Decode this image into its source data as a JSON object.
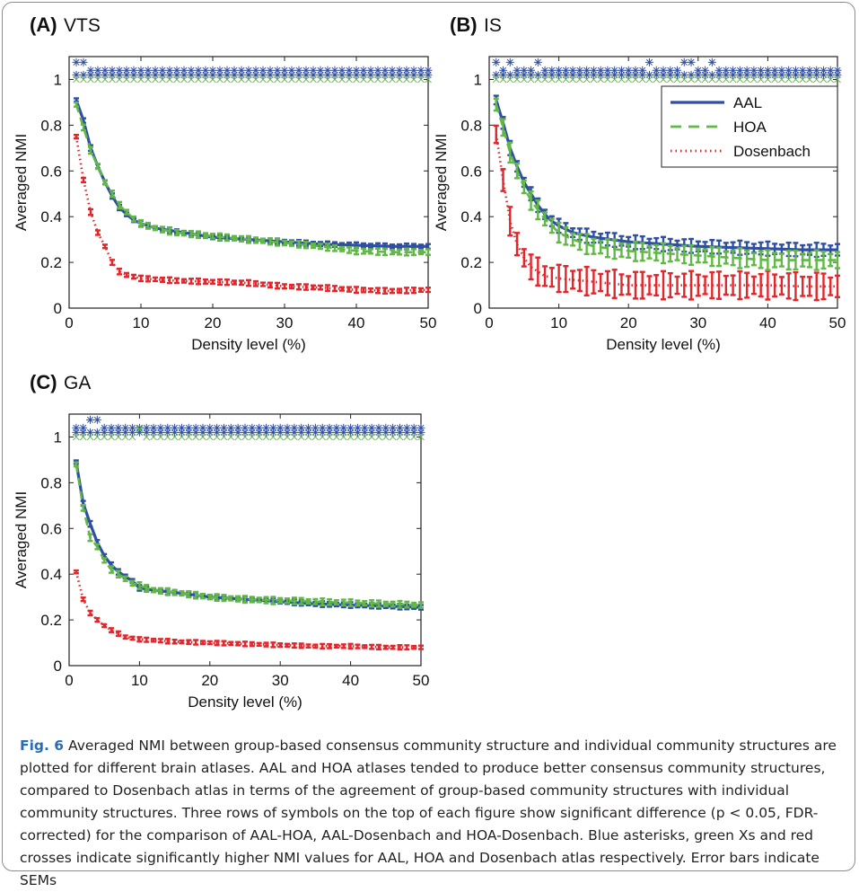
{
  "figure": {
    "caption_label": "Fig. 6",
    "caption_text": " Averaged NMI between group-based consensus community structure and individual community structures are plotted for different brain atlases. AAL and HOA atlases tended to produce better consensus community structures, compared to Dosenbach atlas in terms of the agreement of group-based community structures with individual community structures. Three rows of symbols on the top of each figure show significant difference (p < 0.05, FDR-corrected) for the comparison of AAL-HOA, AAL-Dosenbach and HOA-Dosenbach. Blue asterisks, green Xs and red crosses indicate significantly higher NMI values for AAL, HOA and Dosenbach atlas respectively. Error bars indicate SEMs"
  },
  "colors": {
    "AAL": "#2e4fa3",
    "HOA": "#62b846",
    "Dosenbach": "#e2262b"
  },
  "chart_data": [
    {
      "type": "line",
      "panel_label": "(A)",
      "title": "VTS",
      "xlabel": "Density level (%)",
      "ylabel": "Averaged NMI",
      "xlim": [
        0,
        50
      ],
      "ylim": [
        0,
        1.1
      ],
      "xticks": [
        "0",
        "10",
        "20",
        "30",
        "40",
        "50"
      ],
      "yticks": [
        "0",
        "0.2",
        "0.4",
        "0.6",
        "0.8",
        "1"
      ],
      "legend": null,
      "series": [
        {
          "name": "AAL",
          "style": "solid",
          "anchors": [
            [
              1,
              0.91
            ],
            [
              2,
              0.82
            ],
            [
              3,
              0.7
            ],
            [
              4,
              0.62
            ],
            [
              5,
              0.55
            ],
            [
              6,
              0.49
            ],
            [
              7,
              0.44
            ],
            [
              8,
              0.41
            ],
            [
              9,
              0.385
            ],
            [
              10,
              0.37
            ],
            [
              12,
              0.35
            ],
            [
              15,
              0.335
            ],
            [
              20,
              0.31
            ],
            [
              25,
              0.3
            ],
            [
              30,
              0.29
            ],
            [
              35,
              0.28
            ],
            [
              40,
              0.275
            ],
            [
              45,
              0.27
            ],
            [
              50,
              0.27
            ]
          ],
          "sem": 0.01
        },
        {
          "name": "HOA",
          "style": "dashed",
          "anchors": [
            [
              1,
              0.89
            ],
            [
              2,
              0.79
            ],
            [
              3,
              0.69
            ],
            [
              4,
              0.62
            ],
            [
              5,
              0.55
            ],
            [
              6,
              0.5
            ],
            [
              7,
              0.45
            ],
            [
              8,
              0.42
            ],
            [
              9,
              0.39
            ],
            [
              10,
              0.37
            ],
            [
              12,
              0.35
            ],
            [
              15,
              0.33
            ],
            [
              20,
              0.315
            ],
            [
              25,
              0.3
            ],
            [
              30,
              0.285
            ],
            [
              35,
              0.27
            ],
            [
              40,
              0.25
            ],
            [
              45,
              0.245
            ],
            [
              50,
              0.245
            ]
          ],
          "sem": 0.012
        },
        {
          "name": "Dosenbach",
          "style": "dotted",
          "anchors": [
            [
              1,
              0.75
            ],
            [
              2,
              0.56
            ],
            [
              3,
              0.42
            ],
            [
              4,
              0.33
            ],
            [
              5,
              0.27
            ],
            [
              6,
              0.2
            ],
            [
              7,
              0.16
            ],
            [
              8,
              0.145
            ],
            [
              10,
              0.13
            ],
            [
              15,
              0.12
            ],
            [
              20,
              0.115
            ],
            [
              25,
              0.11
            ],
            [
              30,
              0.095
            ],
            [
              35,
              0.09
            ],
            [
              40,
              0.08
            ],
            [
              45,
              0.075
            ],
            [
              50,
              0.08
            ]
          ],
          "sem": 0.01
        }
      ],
      "significance_rows": [
        {
          "name": "AAL-HOA",
          "symbol": "*",
          "color": "#2e4fa3",
          "raised_at": [
            1,
            2
          ]
        },
        {
          "name": "AAL-Dosenbach",
          "symbol": "*",
          "color": "#2e4fa3",
          "raised_at": []
        },
        {
          "name": "HOA-Dosenbach",
          "symbol": "x",
          "color": "#62b846",
          "raised_at": []
        }
      ]
    },
    {
      "type": "line",
      "panel_label": "(B)",
      "title": "IS",
      "xlabel": "Density level (%)",
      "ylabel": "Averaged NMI",
      "xlim": [
        0,
        50
      ],
      "ylim": [
        0,
        1.1
      ],
      "xticks": [
        "0",
        "10",
        "20",
        "30",
        "40",
        "50"
      ],
      "yticks": [
        "0",
        "0.2",
        "0.4",
        "0.6",
        "0.8",
        "1"
      ],
      "legend": "top-right",
      "series": [
        {
          "name": "AAL",
          "style": "solid",
          "anchors": [
            [
              1,
              0.91
            ],
            [
              2,
              0.81
            ],
            [
              3,
              0.7
            ],
            [
              4,
              0.62
            ],
            [
              5,
              0.55
            ],
            [
              6,
              0.5
            ],
            [
              7,
              0.45
            ],
            [
              8,
              0.41
            ],
            [
              9,
              0.38
            ],
            [
              10,
              0.36
            ],
            [
              12,
              0.33
            ],
            [
              15,
              0.31
            ],
            [
              20,
              0.29
            ],
            [
              25,
              0.28
            ],
            [
              30,
              0.27
            ],
            [
              35,
              0.265
            ],
            [
              40,
              0.26
            ],
            [
              45,
              0.255
            ],
            [
              50,
              0.255
            ]
          ],
          "sem": 0.025
        },
        {
          "name": "HOA",
          "style": "dashed",
          "anchors": [
            [
              1,
              0.89
            ],
            [
              2,
              0.79
            ],
            [
              3,
              0.68
            ],
            [
              4,
              0.6
            ],
            [
              5,
              0.53
            ],
            [
              6,
              0.47
            ],
            [
              7,
              0.43
            ],
            [
              8,
              0.39
            ],
            [
              9,
              0.36
            ],
            [
              10,
              0.33
            ],
            [
              12,
              0.3
            ],
            [
              15,
              0.27
            ],
            [
              20,
              0.25
            ],
            [
              25,
              0.24
            ],
            [
              30,
              0.23
            ],
            [
              35,
              0.22
            ],
            [
              40,
              0.21
            ],
            [
              45,
              0.21
            ],
            [
              50,
              0.21
            ]
          ],
          "sem": 0.035
        },
        {
          "name": "Dosenbach",
          "style": "dotted",
          "anchors": [
            [
              1,
              0.76
            ],
            [
              2,
              0.56
            ],
            [
              3,
              0.38
            ],
            [
              4,
              0.28
            ],
            [
              5,
              0.22
            ],
            [
              6,
              0.18
            ],
            [
              7,
              0.16
            ],
            [
              8,
              0.14
            ],
            [
              10,
              0.13
            ],
            [
              15,
              0.115
            ],
            [
              20,
              0.1
            ],
            [
              25,
              0.1
            ],
            [
              30,
              0.1
            ],
            [
              35,
              0.1
            ],
            [
              40,
              0.1
            ],
            [
              45,
              0.095
            ],
            [
              50,
              0.095
            ]
          ],
          "sem": 0.05
        }
      ],
      "significance_rows": [
        {
          "name": "AAL-HOA",
          "symbol": "*",
          "color": "#2e4fa3",
          "raised_at": [
            1,
            3,
            7,
            23,
            28,
            29,
            32
          ]
        },
        {
          "name": "AAL-Dosenbach",
          "symbol": "*",
          "color": "#2e4fa3",
          "raised_at": []
        },
        {
          "name": "HOA-Dosenbach",
          "symbol": "x",
          "color": "#62b846",
          "raised_at": []
        }
      ]
    },
    {
      "type": "line",
      "panel_label": "(C)",
      "title": "GA",
      "xlabel": "Density level (%)",
      "ylabel": "Averaged NMI",
      "xlim": [
        0,
        50
      ],
      "ylim": [
        0,
        1.1
      ],
      "xticks": [
        "0",
        "10",
        "20",
        "30",
        "40",
        "50"
      ],
      "yticks": [
        "0",
        "0.2",
        "0.4",
        "0.6",
        "0.8",
        "1"
      ],
      "legend": null,
      "series": [
        {
          "name": "AAL",
          "style": "solid",
          "anchors": [
            [
              1,
              0.89
            ],
            [
              2,
              0.71
            ],
            [
              3,
              0.62
            ],
            [
              4,
              0.54
            ],
            [
              5,
              0.48
            ],
            [
              6,
              0.44
            ],
            [
              7,
              0.41
            ],
            [
              8,
              0.39
            ],
            [
              9,
              0.37
            ],
            [
              10,
              0.34
            ],
            [
              12,
              0.33
            ],
            [
              15,
              0.32
            ],
            [
              20,
              0.3
            ],
            [
              25,
              0.29
            ],
            [
              30,
              0.28
            ],
            [
              35,
              0.27
            ],
            [
              40,
              0.265
            ],
            [
              45,
              0.26
            ],
            [
              50,
              0.255
            ]
          ],
          "sem": 0.01
        },
        {
          "name": "HOA",
          "style": "dashed",
          "anchors": [
            [
              1,
              0.88
            ],
            [
              2,
              0.69
            ],
            [
              3,
              0.56
            ],
            [
              4,
              0.52
            ],
            [
              5,
              0.46
            ],
            [
              6,
              0.42
            ],
            [
              7,
              0.4
            ],
            [
              8,
              0.38
            ],
            [
              9,
              0.36
            ],
            [
              10,
              0.35
            ],
            [
              12,
              0.33
            ],
            [
              15,
              0.32
            ],
            [
              20,
              0.3
            ],
            [
              25,
              0.29
            ],
            [
              30,
              0.285
            ],
            [
              35,
              0.28
            ],
            [
              40,
              0.275
            ],
            [
              45,
              0.27
            ],
            [
              50,
              0.265
            ]
          ],
          "sem": 0.012
        },
        {
          "name": "Dosenbach",
          "style": "dotted",
          "anchors": [
            [
              1,
              0.41
            ],
            [
              2,
              0.29
            ],
            [
              3,
              0.23
            ],
            [
              4,
              0.2
            ],
            [
              5,
              0.175
            ],
            [
              6,
              0.155
            ],
            [
              7,
              0.14
            ],
            [
              8,
              0.125
            ],
            [
              10,
              0.115
            ],
            [
              15,
              0.105
            ],
            [
              20,
              0.1
            ],
            [
              25,
              0.095
            ],
            [
              30,
              0.09
            ],
            [
              35,
              0.085
            ],
            [
              40,
              0.085
            ],
            [
              45,
              0.08
            ],
            [
              50,
              0.08
            ]
          ],
          "sem": 0.008
        }
      ],
      "significance_rows": [
        {
          "name": "AAL-HOA",
          "symbol": "*",
          "color": "#2e4fa3",
          "raised_at": [
            3,
            4
          ]
        },
        {
          "name": "AAL-Dosenbach",
          "symbol": "*",
          "color": "#2e4fa3",
          "raised_at": []
        },
        {
          "name": "HOA-Dosenbach",
          "symbol": "x",
          "color": "#62b846",
          "raised_at": [
            10
          ]
        }
      ]
    }
  ]
}
